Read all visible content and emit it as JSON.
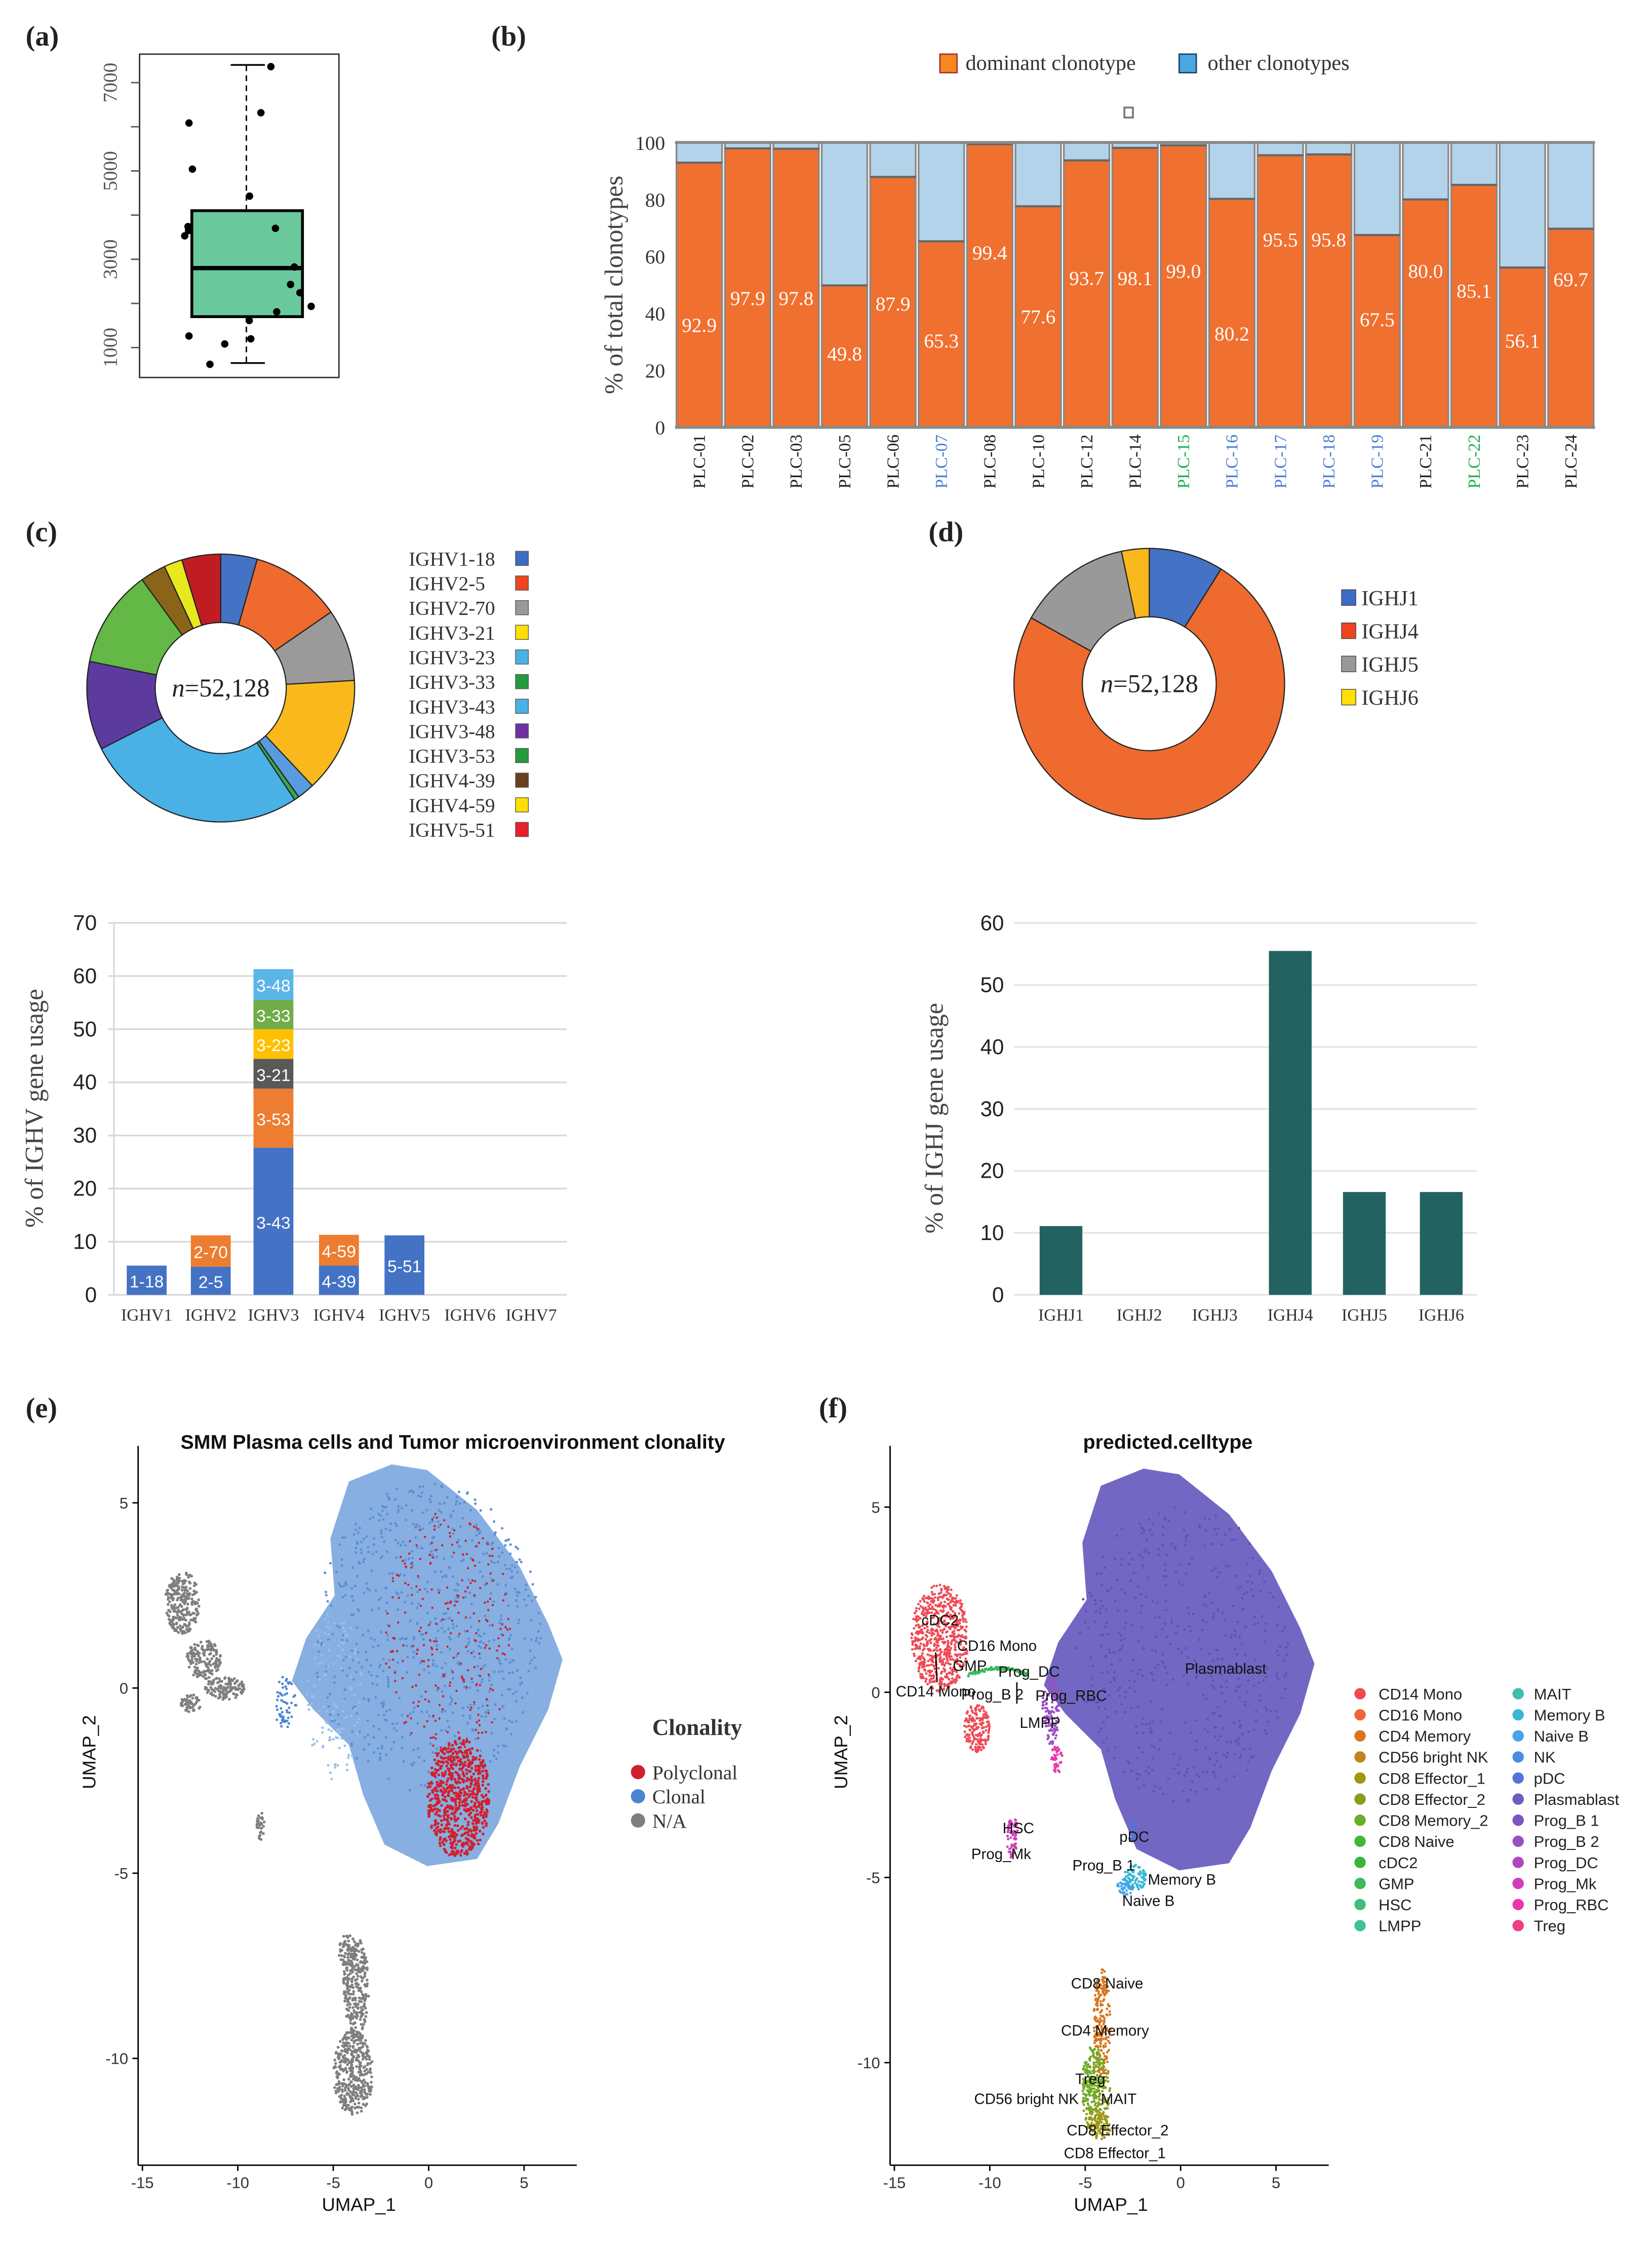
{
  "panel_labels": {
    "a": "(a)",
    "b": "(b)",
    "c": "(c)",
    "d": "(d)",
    "e": "(e)",
    "f": "(f)"
  },
  "chart_data": [
    {
      "id": "a",
      "type": "box",
      "ylim": [
        400,
        7800
      ],
      "yticks": [
        1000,
        2000,
        3000,
        4000,
        5000,
        6000,
        7000
      ],
      "ytick_labels": [
        "1000",
        "3000",
        "5000",
        "7000"
      ],
      "ytick_label_values": [
        1000,
        3000,
        5000,
        7000
      ],
      "box": {
        "whisker_low": 650,
        "q1": 1700,
        "median": 2800,
        "q3": 4100,
        "whisker_high": 7400,
        "color": "#69c99c"
      },
      "points": [
        7362,
        6318,
        6085,
        5041,
        4429,
        3740,
        3650,
        3530,
        3700,
        2825,
        2429,
        2242,
        1933,
        1810,
        1612,
        1262,
        1198,
        1082,
        621
      ]
    },
    {
      "id": "b",
      "type": "bar",
      "stacked": true,
      "title": "",
      "ylabel": "% of total clonotypes",
      "ylim": [
        0,
        100
      ],
      "yticks": [
        "0",
        "20",
        "40",
        "60",
        "80",
        "100"
      ],
      "categories": [
        "PLC-01",
        "PLC-02",
        "PLC-03",
        "PLC-05",
        "PLC-06",
        "PLC-07",
        "PLC-08",
        "PLC-10",
        "PLC-12",
        "PLC-14",
        "PLC-15",
        "PLC-16",
        "PLC-17",
        "PLC-18",
        "PLC-19",
        "PLC-21",
        "PLC-22",
        "PLC-23",
        "PLC-24"
      ],
      "category_colors": [
        "#222222",
        "#222222",
        "#222222",
        "#222222",
        "#222222",
        "#4a7fd4",
        "#222222",
        "#222222",
        "#222222",
        "#222222",
        "#1fae4b",
        "#4a7fd4",
        "#4a7fd4",
        "#4a7fd4",
        "#4a7fd4",
        "#222222",
        "#1fae4b",
        "#222222",
        "#222222"
      ],
      "series": [
        {
          "name": "dominant clonotype",
          "color": "#f07030",
          "legend_color": "#f5891f",
          "values": [
            92.9,
            97.9,
            97.8,
            49.8,
            87.9,
            65.3,
            99.4,
            77.6,
            93.7,
            98.1,
            99.0,
            80.2,
            95.5,
            95.8,
            67.5,
            80.0,
            85.1,
            56.1,
            69.7
          ]
        },
        {
          "name": "other clonotypes",
          "color": "#b3d3ea",
          "legend_color": "#4aa8e0",
          "values": [
            7.1,
            2.1,
            2.2,
            50.2,
            12.1,
            34.7,
            0.6,
            22.4,
            6.3,
            1.9,
            1.0,
            19.8,
            4.5,
            4.2,
            32.5,
            20.0,
            14.9,
            43.9,
            30.3
          ]
        }
      ],
      "data_labels": [
        "92.9",
        "97.9",
        "97.8",
        "49.8",
        "87.9",
        "65.3",
        "99.4",
        "77.6",
        "93.7",
        "98.1",
        "99.0",
        "80.2",
        "95.5",
        "95.8",
        "67.5",
        "80.0",
        "85.1",
        "56.1",
        "69.7"
      ],
      "legend_position": "top"
    },
    {
      "id": "c-pie",
      "type": "pie",
      "center_label": "n=52,128",
      "center_label_n": "n",
      "center_label_value": "=52,128",
      "labels": [
        "IGHV1-18",
        "IGHV2-5",
        "IGHV2-70",
        "IGHV3-21",
        "IGHV3-23",
        "IGHV3-33",
        "IGHV3-43",
        "IGHV3-48",
        "IGHV3-53",
        "IGHV4-39",
        "IGHV4-59",
        "IGHV5-51"
      ],
      "values": [
        4.4,
        11.0,
        8.7,
        13.9,
        2.1,
        0.6,
        26.8,
        10.7,
        11.8,
        3.1,
        2.2,
        4.7
      ],
      "colors": [
        "#4472c4",
        "#ef6a2e",
        "#9a9a9a",
        "#f9b81b",
        "#5a9be0",
        "#3aa84a",
        "#4ab1e6",
        "#5c3a9e",
        "#64b845",
        "#8a6418",
        "#e8e81e",
        "#c01c24"
      ],
      "legend_colors": [
        "#3d6cc6",
        "#ee4422",
        "#999999",
        "#ffe000",
        "#4ab1e6",
        "#259a3c",
        "#4ab1e6",
        "#7030a0",
        "#259a3c",
        "#6b3e1e",
        "#ffe000",
        "#e8202a"
      ],
      "legend_position": "right"
    },
    {
      "id": "d-pie",
      "type": "pie",
      "center_label": "n=52,128",
      "center_label_n": "n",
      "center_label_value": "=52,128",
      "labels": [
        "IGHJ1",
        "IGHJ4",
        "IGHJ5",
        "IGHJ6"
      ],
      "values": [
        8.9,
        74.2,
        13.6,
        3.3
      ],
      "colors": [
        "#4472c4",
        "#ef6a2e",
        "#999999",
        "#f9b81b"
      ],
      "legend_colors": [
        "#3d6cc6",
        "#ee4422",
        "#999999",
        "#ffe000"
      ],
      "legend_position": "right"
    },
    {
      "id": "c-bar",
      "type": "bar",
      "stacked": true,
      "ylabel": "% of IGHV gene usage",
      "ylim": [
        0,
        70
      ],
      "yticks": [
        "0",
        "10",
        "20",
        "30",
        "40",
        "50",
        "60",
        "70"
      ],
      "categories": [
        "IGHV1",
        "IGHV2",
        "IGHV3",
        "IGHV4",
        "IGHV5",
        "IGHV6",
        "IGHV7"
      ],
      "segments": [
        [
          {
            "label": "1-18",
            "value": 5.5,
            "color": "#4472c4"
          }
        ],
        [
          {
            "label": "2-5",
            "value": 5.3,
            "color": "#4472c4"
          },
          {
            "label": "2-70",
            "value": 5.9,
            "color": "#ed7d31"
          }
        ],
        [
          {
            "label": "3-43",
            "value": 27.7,
            "color": "#4472c4"
          },
          {
            "label": "3-53",
            "value": 11.1,
            "color": "#ed7d31"
          },
          {
            "label": "3-21",
            "value": 5.6,
            "color": "#595959"
          },
          {
            "label": "3-23",
            "value": 5.6,
            "color": "#ffc000"
          },
          {
            "label": "3-33",
            "value": 5.5,
            "color": "#70ad47"
          },
          {
            "label": "3-48",
            "value": 5.8,
            "color": "#5bb5e8"
          }
        ],
        [
          {
            "label": "4-39",
            "value": 5.5,
            "color": "#4472c4"
          },
          {
            "label": "4-59",
            "value": 5.8,
            "color": "#ed7d31"
          }
        ],
        [
          {
            "label": "5-51",
            "value": 11.2,
            "color": "#4472c4"
          }
        ],
        [],
        []
      ]
    },
    {
      "id": "d-bar",
      "type": "bar",
      "ylabel": "% of IGHJ gene usage",
      "ylim": [
        0,
        60
      ],
      "yticks": [
        "0",
        "10",
        "20",
        "30",
        "40",
        "50",
        "60"
      ],
      "categories": [
        "IGHJ1",
        "IGHJ2",
        "IGHJ3",
        "IGHJ4",
        "IGHJ5",
        "IGHJ6"
      ],
      "values": [
        11.1,
        0,
        0,
        55.5,
        16.6,
        16.6
      ],
      "color": "#226361"
    },
    {
      "id": "e",
      "type": "scatter",
      "title": "SMM Plasma cells and Tumor microenvironment clonality",
      "xlabel": "UMAP_1",
      "ylabel": "UMAP_2",
      "xticks": [
        "-15",
        "-10",
        "-5",
        "0",
        "5"
      ],
      "xtick_values": [
        -15,
        -10,
        -5,
        0,
        5
      ],
      "yticks": [
        "5",
        "0",
        "-5",
        "-10"
      ],
      "ytick_values": [
        5,
        0,
        -5,
        -10
      ],
      "legend_title": "Clonality",
      "legend": [
        {
          "label": "Polyclonal",
          "color": "#d0202e"
        },
        {
          "label": "Clonal",
          "color": "#4a86d0"
        },
        {
          "label": "N/A",
          "color": "#7f7f7f"
        }
      ],
      "legend_position": "right"
    },
    {
      "id": "f",
      "type": "scatter",
      "title": "predicted.celltype",
      "xlabel": "UMAP_1",
      "ylabel": "UMAP_2",
      "xticks": [
        "-15",
        "-10",
        "-5",
        "0",
        "5"
      ],
      "xtick_values": [
        -15,
        -10,
        -5,
        0,
        5
      ],
      "yticks": [
        "5",
        "0",
        "-5",
        "-10"
      ],
      "ytick_values": [
        5,
        0,
        -5,
        -10
      ],
      "cluster_labels": [
        "cDC2",
        "CD16 Mono",
        "GMP",
        "Prog_DC",
        "CD14 Mono",
        "Prog_B 2",
        "Prog_RBC",
        "LMPP",
        "Plasmablast",
        "HSC",
        "Prog_Mk",
        "pDC",
        "Prog_B 1",
        "Memory B",
        "Naive B",
        "CD8 Naive",
        "CD4 Memory",
        "Treg",
        "CD56 bright NK",
        "MAIT",
        "CD8 Effector_2",
        "CD8 Effector_1"
      ],
      "legend": [
        {
          "label": "CD14 Mono",
          "color": "#ee4a55"
        },
        {
          "label": "CD16 Mono",
          "color": "#ef6633"
        },
        {
          "label": "CD4 Memory",
          "color": "#d8761c"
        },
        {
          "label": "CD56 bright NK",
          "color": "#c2831b"
        },
        {
          "label": "CD8 Effector_1",
          "color": "#a3950f"
        },
        {
          "label": "CD8 Effector_2",
          "color": "#8a9d1b"
        },
        {
          "label": "CD8 Memory_2",
          "color": "#6bae2b"
        },
        {
          "label": "CD8 Naive",
          "color": "#3fb83a"
        },
        {
          "label": "cDC2",
          "color": "#37b53a"
        },
        {
          "label": "GMP",
          "color": "#3cb85e"
        },
        {
          "label": "HSC",
          "color": "#40bd7b"
        },
        {
          "label": "LMPP",
          "color": "#3dc29a"
        },
        {
          "label": "MAIT",
          "color": "#3fbfae"
        },
        {
          "label": "Memory B",
          "color": "#38b7d4"
        },
        {
          "label": "Naive B",
          "color": "#45a5e6"
        },
        {
          "label": "NK",
          "color": "#4a8ee0"
        },
        {
          "label": "pDC",
          "color": "#5672d8"
        },
        {
          "label": "Plasmablast",
          "color": "#6a5fc0"
        },
        {
          "label": "Prog_B 1",
          "color": "#7b56c2"
        },
        {
          "label": "Prog_B 2",
          "color": "#9a4fc4"
        },
        {
          "label": "Prog_DC",
          "color": "#b346bf"
        },
        {
          "label": "Prog_Mk",
          "color": "#cf3fb8"
        },
        {
          "label": "Prog_RBC",
          "color": "#ea37ac"
        },
        {
          "label": "Treg",
          "color": "#ee3e84"
        }
      ],
      "legend_position": "right"
    }
  ]
}
